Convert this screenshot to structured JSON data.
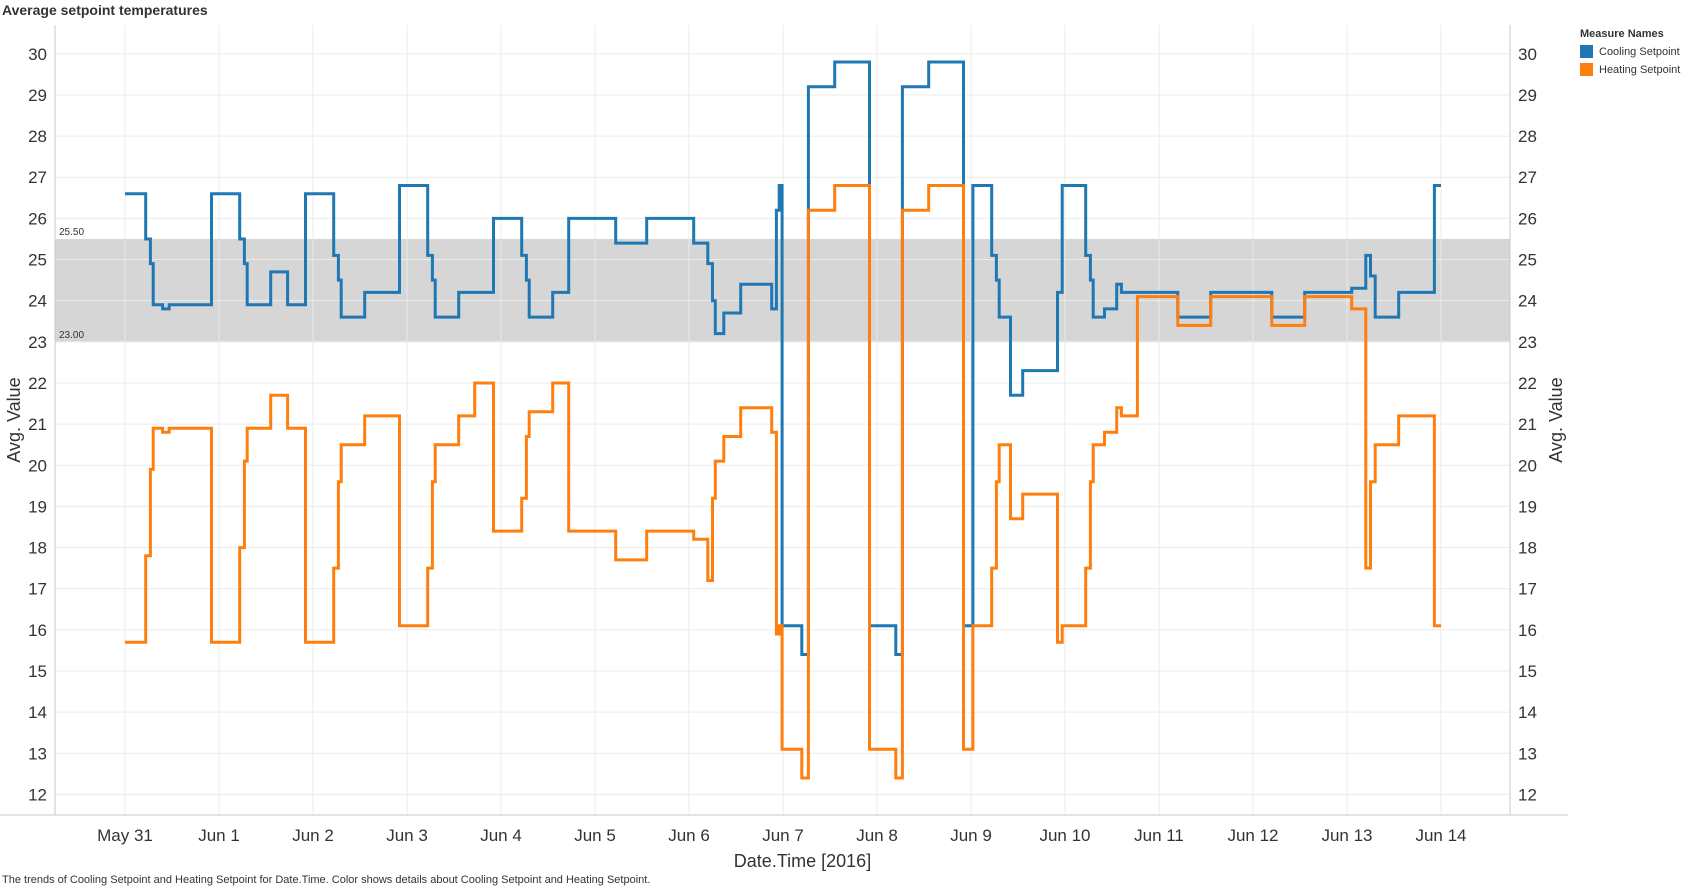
{
  "title": "Average setpoint temperatures",
  "caption": "The trends of Cooling Setpoint and Heating Setpoint for Date.Time.  Color shows details about Cooling Setpoint and Heating Setpoint.",
  "legend": {
    "title": "Measure Names",
    "items": [
      {
        "label": "Cooling Setpoint",
        "color": "#1f77b4"
      },
      {
        "label": "Heating Setpoint",
        "color": "#ff7f0e"
      }
    ]
  },
  "chart_data": {
    "type": "line",
    "xlabel": "Date.Time [2016]",
    "ylabel": "Avg. Value",
    "ylim": [
      11.5,
      30.7
    ],
    "y_ticks": [
      12,
      13,
      14,
      15,
      16,
      17,
      18,
      19,
      20,
      21,
      22,
      23,
      24,
      25,
      26,
      27,
      28,
      29,
      30
    ],
    "x_ticks": [
      "May 31",
      "Jun 1",
      "Jun 2",
      "Jun 3",
      "Jun 4",
      "Jun 5",
      "Jun 6",
      "Jun 7",
      "Jun 8",
      "Jun 9",
      "Jun 10",
      "Jun 11",
      "Jun 12",
      "Jun 13",
      "Jun 14"
    ],
    "x_unit": "days since May 31 2016 00:00",
    "grid": true,
    "band": {
      "low": 23.0,
      "high": 25.5,
      "low_label": "23.00",
      "high_label": "25.50",
      "color": "#d6d6d6"
    },
    "series": [
      {
        "name": "Cooling Setpoint",
        "color": "#1f77b4",
        "points": [
          [
            0.0,
            26.6
          ],
          [
            0.22,
            26.6
          ],
          [
            0.22,
            25.5
          ],
          [
            0.27,
            25.5
          ],
          [
            0.27,
            24.9
          ],
          [
            0.3,
            24.9
          ],
          [
            0.3,
            23.9
          ],
          [
            0.4,
            23.9
          ],
          [
            0.4,
            23.8
          ],
          [
            0.47,
            23.8
          ],
          [
            0.47,
            23.9
          ],
          [
            0.92,
            23.9
          ],
          [
            0.92,
            26.6
          ],
          [
            1.22,
            26.6
          ],
          [
            1.22,
            25.5
          ],
          [
            1.27,
            25.5
          ],
          [
            1.27,
            24.9
          ],
          [
            1.3,
            24.9
          ],
          [
            1.3,
            23.9
          ],
          [
            1.55,
            23.9
          ],
          [
            1.55,
            24.7
          ],
          [
            1.73,
            24.7
          ],
          [
            1.73,
            23.9
          ],
          [
            1.92,
            23.9
          ],
          [
            1.92,
            26.6
          ],
          [
            2.22,
            26.6
          ],
          [
            2.22,
            25.1
          ],
          [
            2.27,
            25.1
          ],
          [
            2.27,
            24.5
          ],
          [
            2.3,
            24.5
          ],
          [
            2.3,
            23.6
          ],
          [
            2.55,
            23.6
          ],
          [
            2.55,
            24.2
          ],
          [
            2.92,
            24.2
          ],
          [
            2.92,
            26.8
          ],
          [
            3.22,
            26.8
          ],
          [
            3.22,
            25.1
          ],
          [
            3.27,
            25.1
          ],
          [
            3.27,
            24.5
          ],
          [
            3.3,
            24.5
          ],
          [
            3.3,
            23.6
          ],
          [
            3.55,
            23.6
          ],
          [
            3.55,
            24.2
          ],
          [
            3.92,
            24.2
          ],
          [
            3.92,
            26.0
          ],
          [
            4.22,
            26.0
          ],
          [
            4.22,
            25.1
          ],
          [
            4.27,
            25.1
          ],
          [
            4.27,
            24.5
          ],
          [
            4.3,
            24.5
          ],
          [
            4.3,
            23.6
          ],
          [
            4.55,
            23.6
          ],
          [
            4.55,
            24.2
          ],
          [
            4.72,
            24.2
          ],
          [
            4.72,
            26.0
          ],
          [
            5.22,
            26.0
          ],
          [
            5.22,
            25.4
          ],
          [
            5.55,
            25.4
          ],
          [
            5.55,
            26.0
          ],
          [
            6.05,
            26.0
          ],
          [
            6.05,
            25.4
          ],
          [
            6.2,
            25.4
          ],
          [
            6.2,
            24.9
          ],
          [
            6.25,
            24.9
          ],
          [
            6.25,
            24.0
          ],
          [
            6.28,
            24.0
          ],
          [
            6.28,
            23.2
          ],
          [
            6.37,
            23.2
          ],
          [
            6.37,
            23.7
          ],
          [
            6.55,
            23.7
          ],
          [
            6.55,
            24.4
          ],
          [
            6.88,
            24.4
          ],
          [
            6.88,
            23.8
          ],
          [
            6.93,
            23.8
          ],
          [
            6.93,
            26.2
          ],
          [
            6.96,
            26.2
          ],
          [
            6.96,
            26.8
          ],
          [
            6.99,
            26.8
          ],
          [
            6.99,
            16.1
          ],
          [
            7.2,
            16.1
          ],
          [
            7.2,
            15.4
          ],
          [
            7.27,
            15.4
          ],
          [
            7.27,
            29.2
          ],
          [
            7.55,
            29.2
          ],
          [
            7.55,
            29.8
          ],
          [
            7.92,
            29.8
          ],
          [
            7.92,
            16.1
          ],
          [
            8.2,
            16.1
          ],
          [
            8.2,
            15.4
          ],
          [
            8.27,
            15.4
          ],
          [
            8.27,
            29.2
          ],
          [
            8.55,
            29.2
          ],
          [
            8.55,
            29.8
          ],
          [
            8.92,
            29.8
          ],
          [
            8.92,
            16.1
          ],
          [
            9.02,
            16.1
          ],
          [
            9.02,
            26.8
          ],
          [
            9.22,
            26.8
          ],
          [
            9.22,
            25.1
          ],
          [
            9.27,
            25.1
          ],
          [
            9.27,
            24.5
          ],
          [
            9.3,
            24.5
          ],
          [
            9.3,
            23.6
          ],
          [
            9.42,
            23.6
          ],
          [
            9.42,
            21.7
          ],
          [
            9.55,
            21.7
          ],
          [
            9.55,
            22.3
          ],
          [
            9.92,
            22.3
          ],
          [
            9.92,
            24.2
          ],
          [
            9.97,
            24.2
          ],
          [
            9.97,
            26.8
          ],
          [
            10.22,
            26.8
          ],
          [
            10.22,
            25.1
          ],
          [
            10.27,
            25.1
          ],
          [
            10.27,
            24.5
          ],
          [
            10.3,
            24.5
          ],
          [
            10.3,
            23.6
          ],
          [
            10.42,
            23.6
          ],
          [
            10.42,
            23.8
          ],
          [
            10.55,
            23.8
          ],
          [
            10.55,
            24.4
          ],
          [
            10.6,
            24.4
          ],
          [
            10.6,
            24.2
          ],
          [
            11.2,
            24.2
          ],
          [
            11.2,
            23.6
          ],
          [
            11.55,
            23.6
          ],
          [
            11.55,
            24.2
          ],
          [
            12.2,
            24.2
          ],
          [
            12.2,
            23.6
          ],
          [
            12.55,
            23.6
          ],
          [
            12.55,
            24.2
          ],
          [
            13.05,
            24.2
          ],
          [
            13.05,
            24.3
          ],
          [
            13.2,
            24.3
          ],
          [
            13.2,
            25.1
          ],
          [
            13.25,
            25.1
          ],
          [
            13.25,
            24.6
          ],
          [
            13.3,
            24.6
          ],
          [
            13.3,
            23.6
          ],
          [
            13.55,
            23.6
          ],
          [
            13.55,
            24.2
          ],
          [
            13.93,
            24.2
          ],
          [
            13.93,
            26.8
          ],
          [
            14.0,
            26.8
          ]
        ]
      },
      {
        "name": "Heating Setpoint",
        "color": "#ff7f0e",
        "points": [
          [
            0.0,
            15.7
          ],
          [
            0.22,
            15.7
          ],
          [
            0.22,
            17.8
          ],
          [
            0.27,
            17.8
          ],
          [
            0.27,
            19.9
          ],
          [
            0.3,
            19.9
          ],
          [
            0.3,
            20.9
          ],
          [
            0.4,
            20.9
          ],
          [
            0.4,
            20.8
          ],
          [
            0.47,
            20.8
          ],
          [
            0.47,
            20.9
          ],
          [
            0.92,
            20.9
          ],
          [
            0.92,
            15.7
          ],
          [
            1.22,
            15.7
          ],
          [
            1.22,
            18.0
          ],
          [
            1.27,
            18.0
          ],
          [
            1.27,
            20.1
          ],
          [
            1.3,
            20.1
          ],
          [
            1.3,
            20.9
          ],
          [
            1.55,
            20.9
          ],
          [
            1.55,
            21.7
          ],
          [
            1.73,
            21.7
          ],
          [
            1.73,
            20.9
          ],
          [
            1.92,
            20.9
          ],
          [
            1.92,
            15.7
          ],
          [
            2.22,
            15.7
          ],
          [
            2.22,
            17.5
          ],
          [
            2.27,
            17.5
          ],
          [
            2.27,
            19.6
          ],
          [
            2.3,
            19.6
          ],
          [
            2.3,
            20.5
          ],
          [
            2.55,
            20.5
          ],
          [
            2.55,
            21.2
          ],
          [
            2.92,
            21.2
          ],
          [
            2.92,
            16.1
          ],
          [
            3.22,
            16.1
          ],
          [
            3.22,
            17.5
          ],
          [
            3.27,
            17.5
          ],
          [
            3.27,
            19.6
          ],
          [
            3.3,
            19.6
          ],
          [
            3.3,
            20.5
          ],
          [
            3.55,
            20.5
          ],
          [
            3.55,
            21.2
          ],
          [
            3.72,
            21.2
          ],
          [
            3.72,
            22.0
          ],
          [
            3.92,
            22.0
          ],
          [
            3.92,
            18.4
          ],
          [
            4.22,
            18.4
          ],
          [
            4.22,
            19.2
          ],
          [
            4.27,
            19.2
          ],
          [
            4.27,
            20.7
          ],
          [
            4.3,
            20.7
          ],
          [
            4.3,
            21.3
          ],
          [
            4.55,
            21.3
          ],
          [
            4.55,
            22.0
          ],
          [
            4.72,
            22.0
          ],
          [
            4.72,
            18.4
          ],
          [
            5.22,
            18.4
          ],
          [
            5.22,
            17.7
          ],
          [
            5.55,
            17.7
          ],
          [
            5.55,
            18.4
          ],
          [
            6.05,
            18.4
          ],
          [
            6.05,
            18.2
          ],
          [
            6.2,
            18.2
          ],
          [
            6.2,
            17.2
          ],
          [
            6.25,
            17.2
          ],
          [
            6.25,
            19.2
          ],
          [
            6.28,
            19.2
          ],
          [
            6.28,
            20.1
          ],
          [
            6.37,
            20.1
          ],
          [
            6.37,
            20.7
          ],
          [
            6.55,
            20.7
          ],
          [
            6.55,
            21.4
          ],
          [
            6.88,
            21.4
          ],
          [
            6.88,
            20.8
          ],
          [
            6.93,
            20.8
          ],
          [
            6.93,
            15.9
          ],
          [
            6.96,
            15.9
          ],
          [
            6.96,
            16.1
          ],
          [
            6.99,
            16.1
          ],
          [
            6.99,
            13.1
          ],
          [
            7.2,
            13.1
          ],
          [
            7.2,
            12.4
          ],
          [
            7.27,
            12.4
          ],
          [
            7.27,
            26.2
          ],
          [
            7.55,
            26.2
          ],
          [
            7.55,
            26.8
          ],
          [
            7.92,
            26.8
          ],
          [
            7.92,
            13.1
          ],
          [
            8.2,
            13.1
          ],
          [
            8.2,
            12.4
          ],
          [
            8.27,
            12.4
          ],
          [
            8.27,
            26.2
          ],
          [
            8.55,
            26.2
          ],
          [
            8.55,
            26.8
          ],
          [
            8.92,
            26.8
          ],
          [
            8.92,
            13.1
          ],
          [
            9.02,
            13.1
          ],
          [
            9.02,
            16.1
          ],
          [
            9.22,
            16.1
          ],
          [
            9.22,
            17.5
          ],
          [
            9.27,
            17.5
          ],
          [
            9.27,
            19.6
          ],
          [
            9.3,
            19.6
          ],
          [
            9.3,
            20.5
          ],
          [
            9.42,
            20.5
          ],
          [
            9.42,
            18.7
          ],
          [
            9.55,
            18.7
          ],
          [
            9.55,
            19.3
          ],
          [
            9.92,
            19.3
          ],
          [
            9.92,
            15.7
          ],
          [
            9.97,
            15.7
          ],
          [
            9.97,
            16.1
          ],
          [
            10.22,
            16.1
          ],
          [
            10.22,
            17.5
          ],
          [
            10.27,
            17.5
          ],
          [
            10.27,
            19.6
          ],
          [
            10.3,
            19.6
          ],
          [
            10.3,
            20.5
          ],
          [
            10.42,
            20.5
          ],
          [
            10.42,
            20.8
          ],
          [
            10.55,
            20.8
          ],
          [
            10.55,
            21.4
          ],
          [
            10.6,
            21.4
          ],
          [
            10.6,
            21.2
          ],
          [
            10.77,
            21.2
          ],
          [
            10.77,
            24.1
          ],
          [
            11.2,
            24.1
          ],
          [
            11.2,
            23.4
          ],
          [
            11.55,
            23.4
          ],
          [
            11.55,
            24.1
          ],
          [
            12.2,
            24.1
          ],
          [
            12.2,
            23.4
          ],
          [
            12.55,
            23.4
          ],
          [
            12.55,
            24.1
          ],
          [
            13.05,
            24.1
          ],
          [
            13.05,
            23.8
          ],
          [
            13.2,
            23.8
          ],
          [
            13.2,
            17.5
          ],
          [
            13.25,
            17.5
          ],
          [
            13.25,
            19.6
          ],
          [
            13.3,
            19.6
          ],
          [
            13.3,
            20.5
          ],
          [
            13.55,
            20.5
          ],
          [
            13.55,
            21.2
          ],
          [
            13.93,
            21.2
          ],
          [
            13.93,
            16.1
          ],
          [
            14.0,
            16.1
          ]
        ]
      }
    ]
  }
}
